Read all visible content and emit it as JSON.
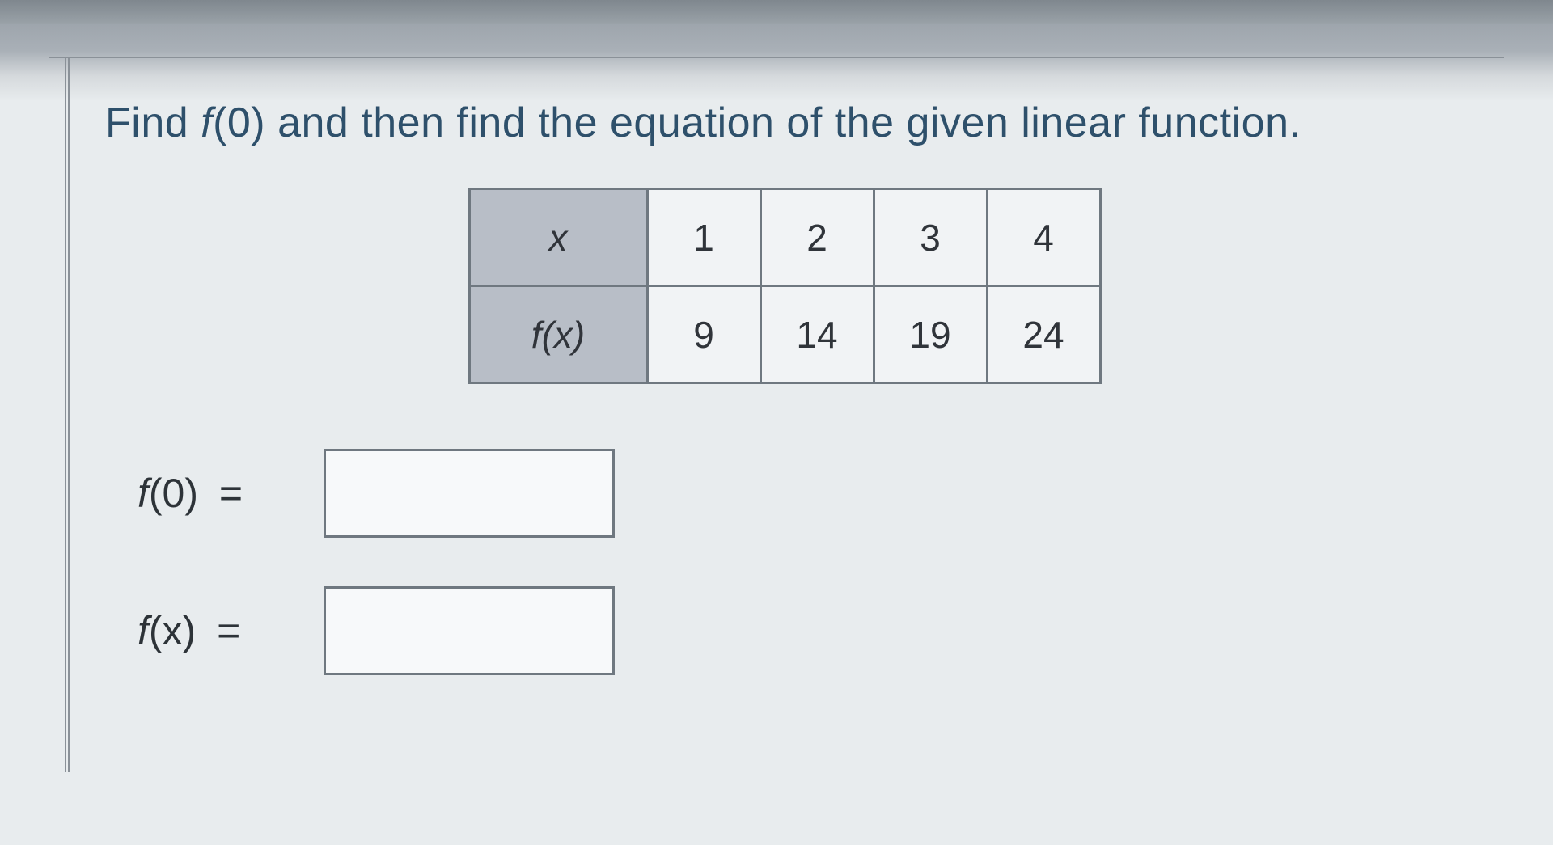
{
  "question": {
    "prefix": "Find ",
    "fn": "f",
    "arg0": "(0)",
    "middle": " and then find the equation of the given linear function."
  },
  "table": {
    "row_x": {
      "label": "x",
      "cells": [
        "1",
        "2",
        "3",
        "4"
      ]
    },
    "row_fx": {
      "label_fn": "f",
      "label_paren": "(x)",
      "cells": [
        "9",
        "14",
        "19",
        "24"
      ]
    },
    "header_bg": "#b8bec7",
    "cell_bg": "#f1f3f5",
    "border_color": "#6f7880"
  },
  "answers": {
    "f0": {
      "label_fn": "f",
      "label_paren": "(0)",
      "eq": "=",
      "value": ""
    },
    "fx": {
      "label_fn": "f",
      "label_paren": "(x)",
      "eq": "=",
      "value": ""
    }
  }
}
